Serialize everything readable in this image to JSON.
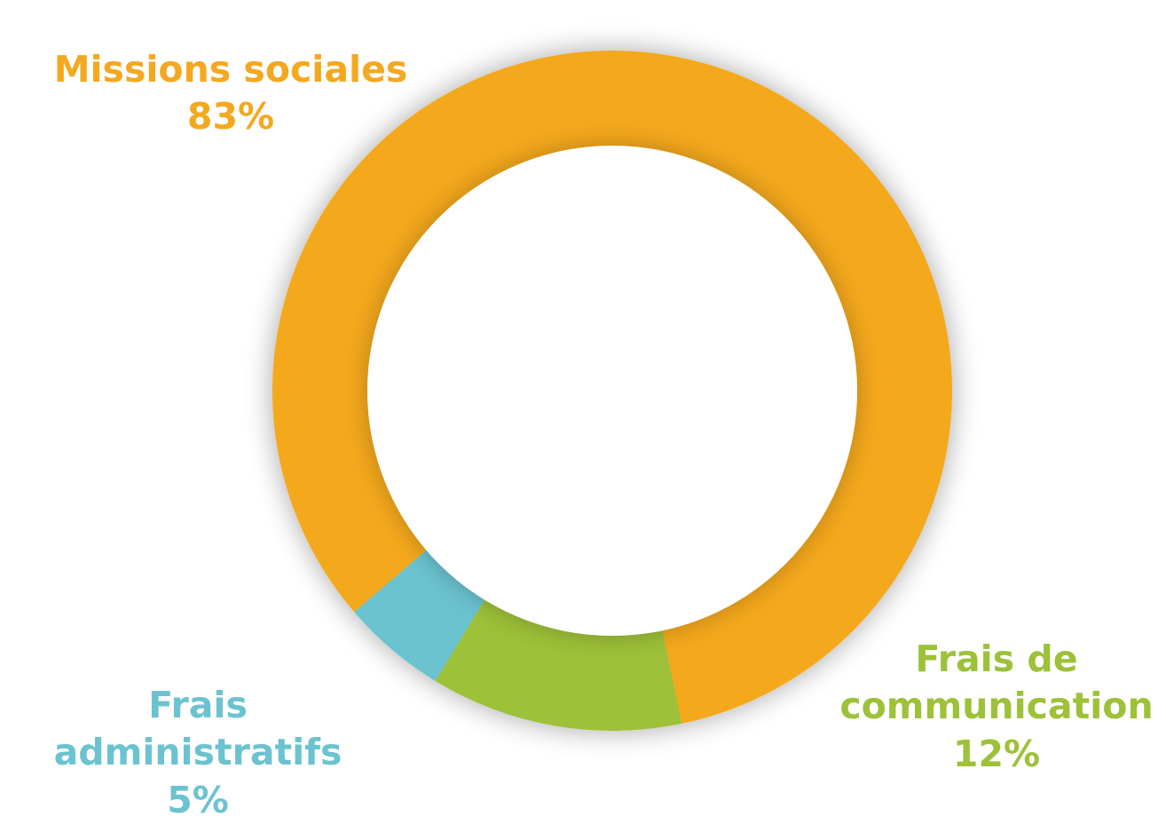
{
  "chart_data": {
    "type": "pie",
    "donut": true,
    "slices": [
      {
        "name": "Missions sociales",
        "value": 83,
        "value_label": "83%",
        "color": "#f4a81f"
      },
      {
        "name": "Frais de communication",
        "name_lines": [
          "Frais de",
          "communication"
        ],
        "value": 12,
        "value_label": "12%",
        "color": "#9dc138"
      },
      {
        "name": "Frais administratifs",
        "value": 5,
        "value_label": "5%",
        "color": "#6bc3cf"
      }
    ],
    "legend": "none",
    "labels_placement": "outside"
  }
}
